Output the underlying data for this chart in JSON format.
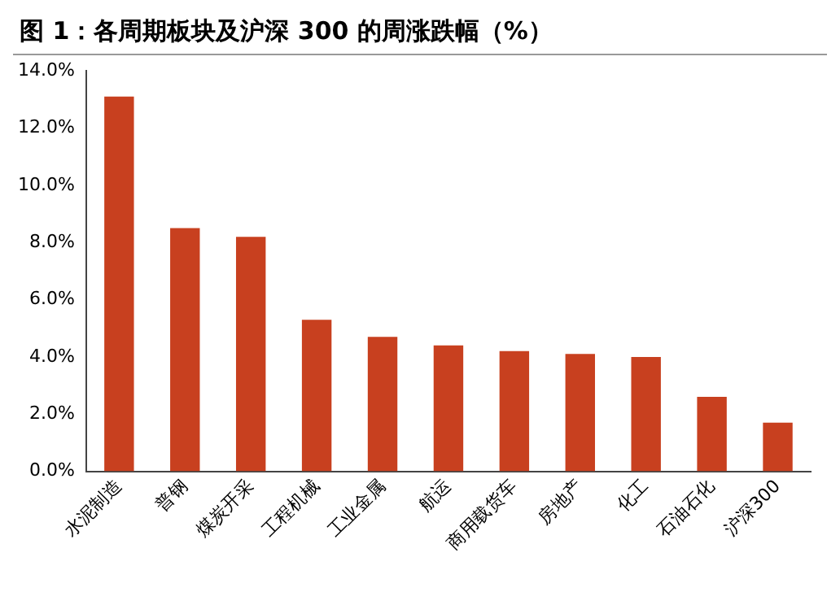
{
  "chart_data": {
    "type": "bar",
    "title": "图 1：各周期板块及沪深 300 的周涨跌幅（%）",
    "categories": [
      "水泥制造",
      "普钢",
      "煤炭开采",
      "工程机械",
      "工业金属",
      "航运",
      "商用载货车",
      "房地产",
      "化工",
      "石油石化",
      "沪深300"
    ],
    "series": [
      {
        "color": "#c8401f",
        "values": [
          13.1,
          8.5,
          8.2,
          5.3,
          4.7,
          4.4,
          4.2,
          4.1,
          4.0,
          2.6,
          1.7
        ]
      }
    ],
    "ylim": [
      0,
      14
    ],
    "yticks": [
      {
        "value": 0,
        "label": "0.0%"
      },
      {
        "value": 2,
        "label": "2.0%"
      },
      {
        "value": 4,
        "label": "4.0%"
      },
      {
        "value": 6,
        "label": "6.0%"
      },
      {
        "value": 8,
        "label": "8.0%"
      },
      {
        "value": 10,
        "label": "10.0%"
      },
      {
        "value": 12,
        "label": "12.0%"
      },
      {
        "value": 14,
        "label": "14.0%"
      }
    ],
    "grid": false,
    "legend": false
  }
}
